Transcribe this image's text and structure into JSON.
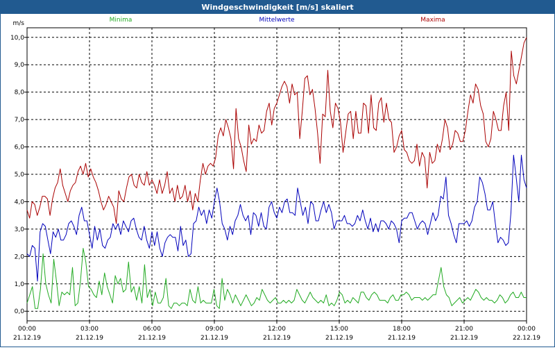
{
  "window": {
    "title": "Windgeschwindigkeit [m/s] skaliert"
  },
  "colors": {
    "titlebar": "#215a90",
    "minima": "#22aa22",
    "mittelwerte": "#0000bb",
    "maxima": "#aa0000",
    "grid": "#000000"
  },
  "chart_data": {
    "type": "line",
    "ylabel": "m/s",
    "ylim": [
      -0.35,
      10.35
    ],
    "yticks": [
      "0,0",
      "1,0",
      "2,0",
      "3,0",
      "4,0",
      "5,0",
      "6,0",
      "7,0",
      "8,0",
      "9,0",
      "10,0"
    ],
    "xlim": [
      0,
      24
    ],
    "xticks": [
      {
        "time": "00:00",
        "date": "21.12.19"
      },
      {
        "time": "03:00",
        "date": "21.12.19"
      },
      {
        "time": "06:00",
        "date": "21.12.19"
      },
      {
        "time": "09:00",
        "date": "21.12.19"
      },
      {
        "time": "12:00",
        "date": "21.12.19"
      },
      {
        "time": "15:00",
        "date": "21.12.19"
      },
      {
        "time": "18:00",
        "date": "21.12.19"
      },
      {
        "time": "21:00",
        "date": "21.12.19"
      },
      {
        "time": "00:00",
        "date": "22.12.19"
      }
    ],
    "grid": true,
    "legend": "top",
    "series": [
      {
        "name": "Minima",
        "color": "#22aa22",
        "values": [
          0.3,
          0.6,
          0.9,
          0.1,
          0.1,
          0.8,
          2.1,
          1.0,
          0.6,
          0.3,
          1.9,
          1.1,
          0.2,
          0.7,
          0.6,
          0.7,
          0.6,
          1.6,
          0.2,
          0.3,
          1.1,
          2.3,
          1.8,
          0.9,
          0.8,
          0.6,
          0.5,
          1.1,
          0.6,
          1.4,
          0.9,
          0.6,
          0.3,
          1.3,
          1.0,
          1.2,
          0.7,
          0.8,
          1.8,
          0.7,
          0.9,
          0.4,
          0.9,
          0.3,
          1.7,
          0.5,
          0.8,
          0.2,
          0.7,
          0.3,
          0.3,
          0.5,
          1.2,
          0.2,
          0.1,
          0.3,
          0.3,
          0.2,
          0.3,
          0.3,
          0.2,
          0.8,
          0.4,
          0.3,
          0.9,
          0.3,
          0.4,
          0.3,
          0.3,
          0.3,
          0.8,
          0.2,
          0.1,
          1.2,
          0.4,
          0.8,
          0.6,
          0.3,
          0.6,
          0.4,
          0.2,
          0.4,
          0.6,
          0.4,
          0.2,
          0.3,
          0.5,
          0.4,
          0.8,
          0.6,
          0.4,
          0.3,
          0.4,
          0.5,
          0.3,
          0.3,
          0.4,
          0.3,
          0.4,
          0.3,
          0.4,
          0.8,
          0.6,
          0.4,
          0.3,
          0.5,
          0.7,
          0.5,
          0.4,
          0.3,
          0.4,
          0.3,
          0.6,
          0.2,
          0.3,
          0.2,
          0.4,
          0.7,
          0.6,
          0.3,
          0.4,
          0.3,
          0.5,
          0.4,
          0.3,
          0.7,
          0.7,
          0.5,
          0.4,
          0.6,
          0.7,
          0.6,
          0.4,
          0.4,
          0.4,
          0.3,
          0.5,
          0.6,
          0.4,
          0.4,
          0.6,
          0.6,
          0.7,
          0.6,
          0.4,
          0.5,
          0.5,
          0.5,
          0.4,
          0.5,
          0.4,
          0.5,
          0.6,
          0.6,
          1.1,
          1.6,
          0.9,
          0.6,
          0.5,
          0.2,
          0.3,
          0.4,
          0.5,
          0.3,
          0.4,
          0.5,
          0.4,
          0.6,
          0.8,
          0.7,
          0.5,
          0.4,
          0.5,
          0.4,
          0.4,
          0.3,
          0.4,
          0.6,
          0.5,
          0.3,
          0.4,
          0.6,
          0.7,
          0.5,
          0.5,
          0.7,
          0.5,
          0.5
        ]
      },
      {
        "name": "Mittelwerte",
        "color": "#0000bb",
        "values": [
          2.1,
          2.0,
          2.4,
          2.3,
          1.1,
          2.9,
          3.2,
          3.1,
          2.6,
          2.1,
          2.9,
          2.7,
          3.0,
          2.6,
          2.6,
          2.8,
          3.2,
          3.3,
          3.1,
          2.8,
          3.5,
          3.8,
          3.3,
          3.3,
          2.8,
          2.3,
          3.1,
          2.6,
          3.0,
          2.4,
          2.3,
          2.6,
          2.7,
          3.2,
          3.0,
          3.2,
          2.8,
          3.3,
          3.1,
          2.9,
          3.3,
          3.4,
          3.0,
          2.7,
          2.6,
          3.1,
          2.6,
          2.3,
          2.9,
          2.4,
          2.9,
          2.3,
          2.0,
          2.5,
          2.7,
          2.8,
          2.7,
          2.7,
          2.2,
          3.1,
          2.4,
          2.6,
          2.0,
          2.1,
          3.2,
          3.3,
          3.8,
          3.5,
          3.7,
          3.2,
          3.7,
          3.4,
          4.0,
          4.5,
          4.0,
          3.2,
          3.0,
          2.6,
          3.1,
          2.8,
          3.3,
          3.5,
          3.9,
          3.5,
          3.3,
          3.5,
          2.8,
          3.6,
          3.5,
          3.1,
          3.6,
          3.1,
          3.0,
          3.8,
          4.0,
          3.6,
          3.4,
          3.8,
          3.6,
          4.0,
          4.1,
          3.6,
          3.6,
          3.5,
          4.5,
          4.0,
          3.5,
          3.8,
          3.2,
          4.0,
          3.9,
          3.3,
          3.3,
          3.7,
          4.0,
          3.6,
          3.9,
          3.6,
          3.0,
          3.3,
          3.3,
          3.3,
          3.5,
          3.2,
          3.2,
          3.1,
          3.2,
          3.5,
          3.3,
          3.7,
          3.3,
          3.0,
          3.4,
          2.9,
          3.2,
          2.9,
          3.3,
          3.3,
          3.2,
          3.0,
          3.3,
          3.2,
          3.0,
          2.5,
          3.3,
          3.4,
          3.4,
          3.6,
          3.6,
          3.3,
          3.0,
          3.2,
          3.3,
          3.2,
          2.8,
          3.2,
          3.6,
          3.3,
          3.5,
          4.2,
          4.1,
          4.9,
          3.5,
          3.2,
          2.8,
          2.5,
          3.2,
          3.2,
          3.2,
          3.3,
          3.1,
          3.3,
          3.8,
          4.0,
          4.9,
          4.7,
          4.3,
          3.7,
          3.7,
          4.0,
          3.2,
          2.5,
          2.7,
          2.6,
          2.4,
          2.5,
          3.6,
          5.7,
          4.9,
          4.0,
          5.7,
          4.8,
          4.5
        ]
      },
      {
        "name": "Maxima",
        "color": "#aa0000",
        "values": [
          3.7,
          3.4,
          4.0,
          3.9,
          3.5,
          3.8,
          4.2,
          4.2,
          4.1,
          3.5,
          4.1,
          4.5,
          4.7,
          5.2,
          4.6,
          4.3,
          4.0,
          4.4,
          4.6,
          4.7,
          5.1,
          5.3,
          5.0,
          5.4,
          4.9,
          5.2,
          4.9,
          4.7,
          4.4,
          4.0,
          3.7,
          3.9,
          4.2,
          4.0,
          3.8,
          3.2,
          4.4,
          4.1,
          4.0,
          4.5,
          4.9,
          5.0,
          4.6,
          4.5,
          5.0,
          4.7,
          4.6,
          5.1,
          4.6,
          4.8,
          4.6,
          4.3,
          4.8,
          4.3,
          4.6,
          5.1,
          4.3,
          4.5,
          4.0,
          4.6,
          4.1,
          4.2,
          4.6,
          4.0,
          4.4,
          3.7,
          4.3,
          4.0,
          4.8,
          5.4,
          5.0,
          5.3,
          5.4,
          5.3,
          5.6,
          6.4,
          6.7,
          6.4,
          7.0,
          6.7,
          6.3,
          5.2,
          7.4,
          6.3,
          6.0,
          5.5,
          5.1,
          6.8,
          6.1,
          6.3,
          6.2,
          6.8,
          6.5,
          6.6,
          7.3,
          7.6,
          6.8,
          7.4,
          7.6,
          7.9,
          8.2,
          8.4,
          8.2,
          7.6,
          8.3,
          7.9,
          8.0,
          6.3,
          7.3,
          8.5,
          8.6,
          7.9,
          8.1,
          7.4,
          6.5,
          5.4,
          7.2,
          7.1,
          8.8,
          7.3,
          6.7,
          7.6,
          7.4,
          6.9,
          5.8,
          6.5,
          7.2,
          7.3,
          6.3,
          7.3,
          6.5,
          6.5,
          7.6,
          7.5,
          6.5,
          7.9,
          6.7,
          6.6,
          7.6,
          7.8,
          6.9,
          7.6,
          7.0,
          6.9,
          5.8,
          6.0,
          6.4,
          6.6,
          5.9,
          5.8,
          5.5,
          5.4,
          5.5,
          6.1,
          5.3,
          5.8,
          5.6,
          4.5,
          5.8,
          5.4,
          5.5,
          6.1,
          5.8,
          6.3,
          7.0,
          6.7,
          5.9,
          6.1,
          6.6,
          6.5,
          6.2,
          6.2,
          6.6,
          7.3,
          7.9,
          7.6,
          8.3,
          8.1,
          7.5,
          7.2,
          6.2,
          6.0,
          6.3,
          7.3,
          7.0,
          6.6,
          6.6,
          7.5,
          8.0,
          6.6,
          9.5,
          8.6,
          8.3,
          8.8,
          9.3,
          9.8,
          10.0
        ]
      }
    ]
  }
}
